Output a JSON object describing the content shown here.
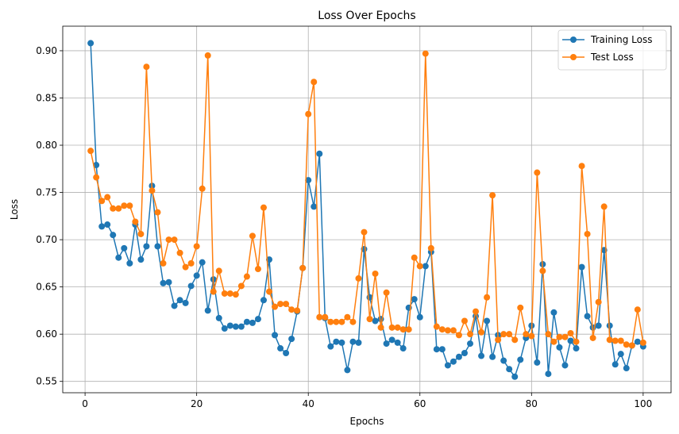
{
  "chart_data": {
    "type": "line",
    "title": "Loss Over Epochs",
    "xlabel": "Epochs",
    "ylabel": "Loss",
    "xlim": [
      -4,
      105
    ],
    "ylim": [
      0.538,
      0.926
    ],
    "xticks": [
      0,
      20,
      40,
      60,
      80,
      100
    ],
    "yticks": [
      0.55,
      0.6,
      0.65,
      0.7,
      0.75,
      0.8,
      0.85,
      0.9
    ],
    "ytick_labels": [
      "0.55",
      "0.60",
      "0.65",
      "0.70",
      "0.75",
      "0.80",
      "0.85",
      "0.90"
    ],
    "grid": true,
    "legend_position": "top-right",
    "markers": "circle",
    "series": [
      {
        "name": "Training Loss",
        "color": "#1f77b4",
        "x": [
          1,
          2,
          3,
          4,
          5,
          6,
          7,
          8,
          9,
          10,
          11,
          12,
          13,
          14,
          15,
          16,
          17,
          18,
          19,
          20,
          21,
          22,
          23,
          24,
          25,
          26,
          27,
          28,
          29,
          30,
          31,
          32,
          33,
          34,
          35,
          36,
          37,
          38,
          39,
          40,
          41,
          42,
          43,
          44,
          45,
          46,
          47,
          48,
          49,
          50,
          51,
          52,
          53,
          54,
          55,
          56,
          57,
          58,
          59,
          60,
          61,
          62,
          63,
          64,
          65,
          66,
          67,
          68,
          69,
          70,
          71,
          72,
          73,
          74,
          75,
          76,
          77,
          78,
          79,
          80,
          81,
          82,
          83,
          84,
          85,
          86,
          87,
          88,
          89,
          90,
          91,
          92,
          93,
          94,
          95,
          96,
          97,
          98,
          99,
          100
        ],
        "values": [
          0.908,
          0.779,
          0.714,
          0.716,
          0.705,
          0.681,
          0.691,
          0.675,
          0.716,
          0.679,
          0.693,
          0.757,
          0.693,
          0.654,
          0.655,
          0.63,
          0.636,
          0.633,
          0.651,
          0.662,
          0.676,
          0.625,
          0.658,
          0.617,
          0.606,
          0.609,
          0.608,
          0.608,
          0.613,
          0.612,
          0.616,
          0.636,
          0.679,
          0.599,
          0.585,
          0.58,
          0.595,
          0.624,
          0.67,
          0.763,
          0.735,
          0.791,
          0.617,
          0.587,
          0.592,
          0.591,
          0.562,
          0.592,
          0.591,
          0.69,
          0.639,
          0.614,
          0.616,
          0.59,
          0.594,
          0.591,
          0.585,
          0.628,
          0.637,
          0.618,
          0.672,
          0.687,
          0.584,
          0.584,
          0.567,
          0.571,
          0.576,
          0.58,
          0.59,
          0.619,
          0.577,
          0.614,
          0.576,
          0.599,
          0.572,
          0.563,
          0.555,
          0.573,
          0.596,
          0.609,
          0.57,
          0.674,
          0.558,
          0.623,
          0.586,
          0.567,
          0.593,
          0.585,
          0.671,
          0.619,
          0.607,
          0.609,
          0.689,
          0.609,
          0.568,
          0.579,
          0.564,
          0.588,
          0.592,
          0.587
        ]
      },
      {
        "name": "Test Loss",
        "color": "#ff7f0e",
        "x": [
          1,
          2,
          3,
          4,
          5,
          6,
          7,
          8,
          9,
          10,
          11,
          12,
          13,
          14,
          15,
          16,
          17,
          18,
          19,
          20,
          21,
          22,
          23,
          24,
          25,
          26,
          27,
          28,
          29,
          30,
          31,
          32,
          33,
          34,
          35,
          36,
          37,
          38,
          39,
          40,
          41,
          42,
          43,
          44,
          45,
          46,
          47,
          48,
          49,
          50,
          51,
          52,
          53,
          54,
          55,
          56,
          57,
          58,
          59,
          60,
          61,
          62,
          63,
          64,
          65,
          66,
          67,
          68,
          69,
          70,
          71,
          72,
          73,
          74,
          75,
          76,
          77,
          78,
          79,
          80,
          81,
          82,
          83,
          84,
          85,
          86,
          87,
          88,
          89,
          90,
          91,
          92,
          93,
          94,
          95,
          96,
          97,
          98,
          99,
          100
        ],
        "values": [
          0.794,
          0.766,
          0.741,
          0.745,
          0.733,
          0.733,
          0.736,
          0.736,
          0.719,
          0.706,
          0.883,
          0.752,
          0.729,
          0.675,
          0.7,
          0.7,
          0.686,
          0.671,
          0.675,
          0.693,
          0.754,
          0.895,
          0.645,
          0.667,
          0.643,
          0.643,
          0.642,
          0.651,
          0.661,
          0.704,
          0.669,
          0.734,
          0.645,
          0.629,
          0.632,
          0.632,
          0.626,
          0.625,
          0.67,
          0.833,
          0.867,
          0.618,
          0.618,
          0.613,
          0.613,
          0.613,
          0.618,
          0.613,
          0.659,
          0.708,
          0.616,
          0.664,
          0.607,
          0.644,
          0.607,
          0.607,
          0.605,
          0.605,
          0.681,
          0.672,
          0.897,
          0.691,
          0.608,
          0.605,
          0.604,
          0.604,
          0.599,
          0.614,
          0.6,
          0.624,
          0.602,
          0.639,
          0.747,
          0.594,
          0.6,
          0.6,
          0.594,
          0.628,
          0.6,
          0.598,
          0.771,
          0.667,
          0.6,
          0.592,
          0.597,
          0.597,
          0.601,
          0.592,
          0.778,
          0.706,
          0.596,
          0.634,
          0.735,
          0.594,
          0.593,
          0.593,
          0.589,
          0.588,
          0.626,
          0.591
        ]
      }
    ]
  }
}
